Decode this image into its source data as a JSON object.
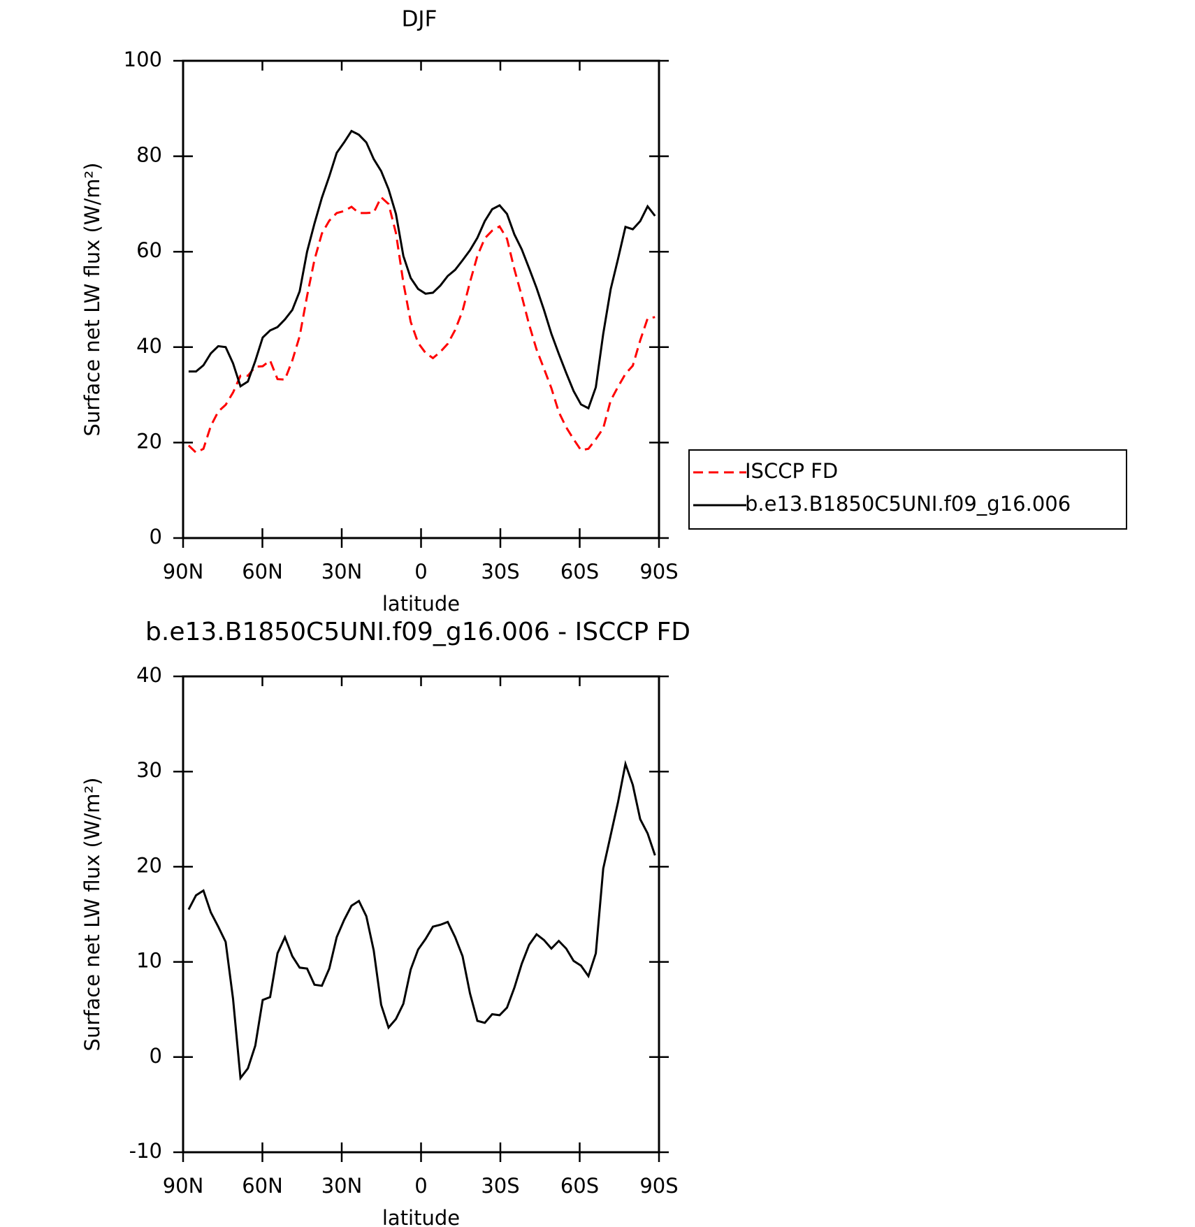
{
  "chart_data": [
    {
      "type": "line",
      "title": "DJF",
      "xlabel": "latitude",
      "ylabel": "Surface net LW flux (W/m²)",
      "x": [
        87.9,
        85.1,
        82.3,
        79.5,
        76.7,
        73.9,
        71.1,
        68.3,
        65.5,
        62.7,
        59.9,
        57.1,
        54.3,
        51.5,
        48.7,
        45.9,
        43.1,
        40.3,
        37.5,
        34.7,
        31.9,
        29.1,
        26.3,
        23.5,
        20.7,
        17.9,
        15.1,
        12.3,
        9.5,
        6.7,
        3.9,
        1.1,
        -1.7,
        -4.5,
        -7.3,
        -10.1,
        -12.9,
        -15.7,
        -18.5,
        -21.3,
        -24.1,
        -26.9,
        -29.7,
        -32.5,
        -35.3,
        -38.1,
        -40.9,
        -43.7,
        -46.5,
        -49.3,
        -52.1,
        -54.9,
        -57.7,
        -60.5,
        -63.3,
        -66.1,
        -68.9,
        -71.7,
        -74.5,
        -77.3,
        -80.1,
        -82.9,
        -85.7,
        -88.5
      ],
      "series": [
        {
          "name": "ISCCP FD",
          "color": "#ff0000",
          "dashed": true,
          "values": [
            19.4,
            17.9,
            18.7,
            23.5,
            26.5,
            27.9,
            30.5,
            34.0,
            34.0,
            35.9,
            36.0,
            37.2,
            33.3,
            33.2,
            37.2,
            42.3,
            50.7,
            58.3,
            63.8,
            66.5,
            68.1,
            68.5,
            69.4,
            68.1,
            68.1,
            68.2,
            71.4,
            70.0,
            63.9,
            53.5,
            45.3,
            40.9,
            38.8,
            37.7,
            39.0,
            40.7,
            43.6,
            47.6,
            53.6,
            59.1,
            62.8,
            64.4,
            65.3,
            62.7,
            56.3,
            50.7,
            44.7,
            39.5,
            35.5,
            31.4,
            26.4,
            23.2,
            20.7,
            18.4,
            18.7,
            20.7,
            23.0,
            28.8,
            31.7,
            34.4,
            36.1,
            41.4,
            46.0,
            46.3
          ]
        },
        {
          "name": "b.e13.B1850C5UNI.f09_g16.006",
          "color": "#000000",
          "dashed": false,
          "values": [
            34.9,
            34.9,
            36.2,
            38.7,
            40.2,
            40.0,
            36.6,
            31.8,
            32.8,
            37.1,
            42.0,
            43.5,
            44.2,
            45.8,
            47.8,
            51.7,
            60.0,
            65.9,
            71.3,
            75.8,
            80.7,
            82.9,
            85.3,
            84.5,
            82.9,
            79.4,
            76.9,
            73.1,
            67.9,
            59.1,
            54.5,
            52.2,
            51.2,
            51.4,
            52.9,
            54.9,
            56.2,
            58.2,
            60.3,
            62.9,
            66.4,
            68.9,
            69.7,
            67.9,
            63.6,
            60.5,
            56.5,
            52.4,
            47.8,
            42.8,
            38.6,
            34.6,
            30.8,
            28.0,
            27.2,
            31.6,
            42.8,
            52.1,
            58.5,
            65.2,
            64.7,
            66.4,
            69.5,
            67.5
          ]
        }
      ],
      "xlim": [
        90,
        -90
      ],
      "xticks": [
        {
          "value": 90,
          "label": "90N"
        },
        {
          "value": 60,
          "label": "60N"
        },
        {
          "value": 30,
          "label": "30N"
        },
        0,
        {
          "value": -30,
          "label": "30S"
        },
        {
          "value": -60,
          "label": "60S"
        },
        {
          "value": -90,
          "label": "90S"
        }
      ],
      "ylim": [
        0,
        100
      ],
      "yticks": [
        0,
        20,
        40,
        60,
        80,
        100
      ],
      "legend": "outside-right"
    },
    {
      "type": "line",
      "title": "b.e13.B1850C5UNI.f09_g16.006 - ISCCP FD",
      "xlabel": "latitude",
      "ylabel": "Surface net LW flux (W/m²)",
      "x": [
        87.9,
        85.1,
        82.3,
        79.5,
        76.7,
        73.9,
        71.1,
        68.3,
        65.5,
        62.7,
        59.9,
        57.1,
        54.3,
        51.5,
        48.7,
        45.9,
        43.1,
        40.3,
        37.5,
        34.7,
        31.9,
        29.1,
        26.3,
        23.5,
        20.7,
        17.9,
        15.1,
        12.3,
        9.5,
        6.7,
        3.9,
        1.1,
        -1.7,
        -4.5,
        -7.3,
        -10.1,
        -12.9,
        -15.7,
        -18.5,
        -21.3,
        -24.1,
        -26.9,
        -29.7,
        -32.5,
        -35.3,
        -38.1,
        -40.9,
        -43.7,
        -46.5,
        -49.3,
        -52.1,
        -54.9,
        -57.7,
        -60.5,
        -63.3,
        -66.1,
        -68.9,
        -71.7,
        -74.5,
        -77.3,
        -80.1,
        -82.9,
        -85.7,
        -88.5
      ],
      "series": [
        {
          "color": "#000000",
          "dashed": false,
          "values": [
            15.5,
            17.0,
            17.5,
            15.2,
            13.7,
            12.1,
            6.1,
            -2.2,
            -1.2,
            1.2,
            6.0,
            6.3,
            10.9,
            12.6,
            10.6,
            9.4,
            9.3,
            7.6,
            7.5,
            9.3,
            12.6,
            14.4,
            15.9,
            16.4,
            14.8,
            11.2,
            5.5,
            3.1,
            4.0,
            5.6,
            9.2,
            11.3,
            12.4,
            13.7,
            13.9,
            14.2,
            12.6,
            10.6,
            6.7,
            3.8,
            3.6,
            4.5,
            4.4,
            5.2,
            7.3,
            9.8,
            11.8,
            12.9,
            12.3,
            11.4,
            12.2,
            11.4,
            10.1,
            9.6,
            8.5,
            10.9,
            19.8,
            23.3,
            26.8,
            30.8,
            28.6,
            25.0,
            23.5,
            21.2
          ]
        }
      ],
      "xlim": [
        90,
        -90
      ],
      "xticks": [
        {
          "value": 90,
          "label": "90N"
        },
        {
          "value": 60,
          "label": "60N"
        },
        {
          "value": 30,
          "label": "30N"
        },
        0,
        {
          "value": -30,
          "label": "30S"
        },
        {
          "value": -60,
          "label": "60S"
        },
        {
          "value": -90,
          "label": "90S"
        }
      ],
      "ylim": [
        -10,
        40
      ],
      "yticks": [
        -10,
        0,
        10,
        20,
        30,
        40
      ]
    }
  ]
}
